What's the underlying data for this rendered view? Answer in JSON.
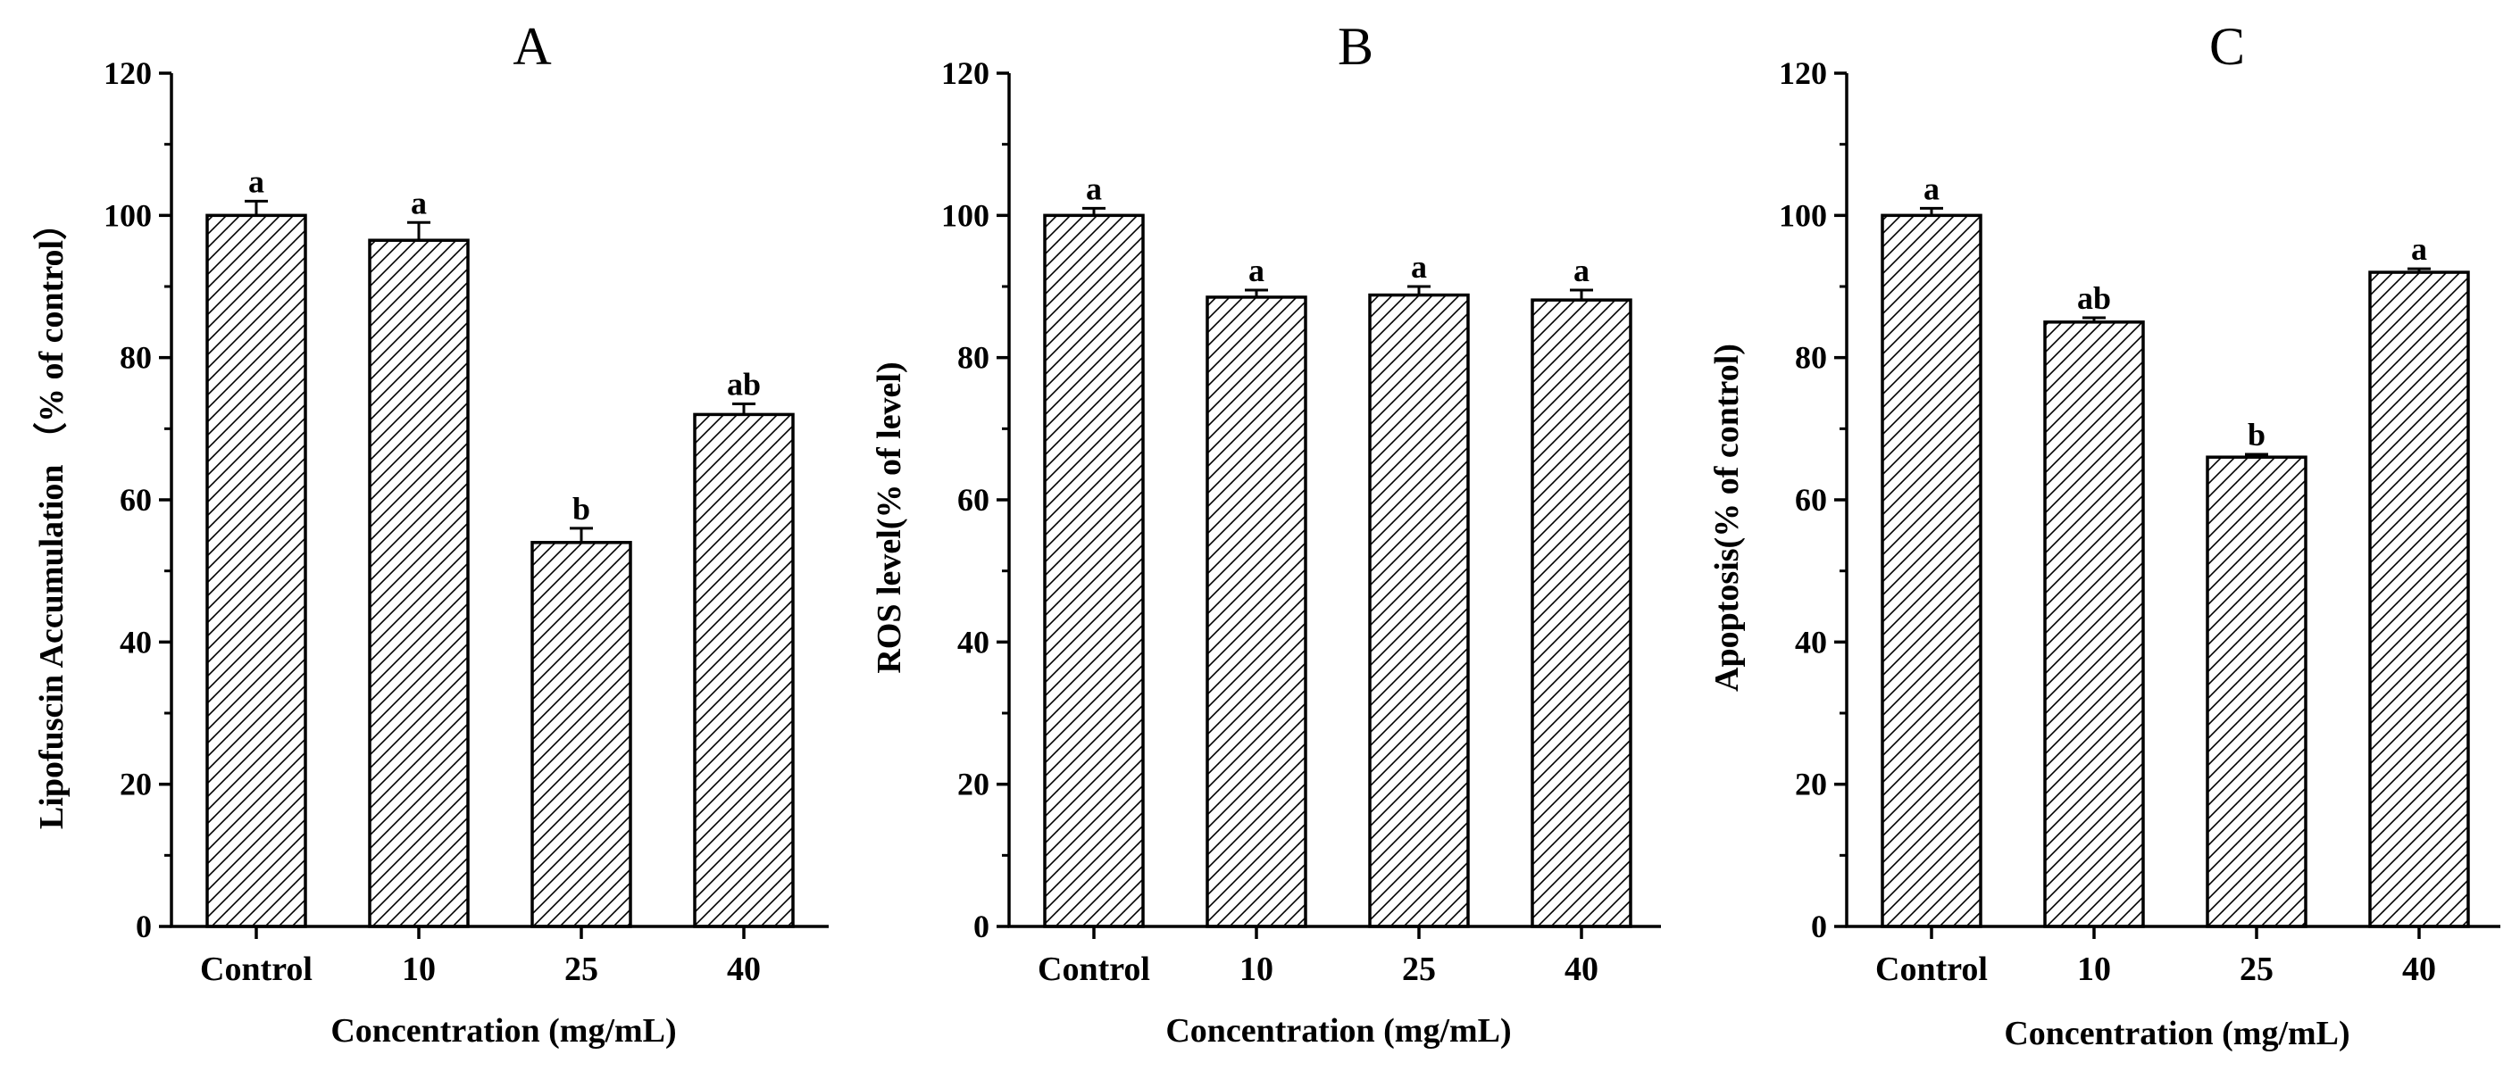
{
  "chart_data": [
    {
      "type": "bar",
      "panel_label": "A",
      "categories": [
        "Control",
        "10",
        "25",
        "40"
      ],
      "values": [
        100,
        96.5,
        54,
        72
      ],
      "errors": [
        2,
        2.5,
        2,
        1.5
      ],
      "significance": [
        "a",
        "a",
        "b",
        "ab"
      ],
      "xlabel": "Concentration (mg/mL)",
      "ylabel": "Lipofuscin Accumulation （% of control）",
      "ylim": [
        0,
        120
      ],
      "yticks": [
        0,
        20,
        40,
        60,
        80,
        100,
        120
      ],
      "fill": "diagonal hatch"
    },
    {
      "type": "bar",
      "panel_label": "B",
      "categories": [
        "Control",
        "10",
        "25",
        "40"
      ],
      "values": [
        100,
        88.5,
        88.8,
        88.1
      ],
      "errors": [
        1,
        1,
        1.2,
        1.4
      ],
      "significance": [
        "a",
        "a",
        "a",
        "a"
      ],
      "xlabel": "Concentration (mg/mL)",
      "ylabel": "ROS level(% of level)",
      "ylim": [
        0,
        120
      ],
      "yticks": [
        0,
        20,
        40,
        60,
        80,
        100,
        120
      ],
      "fill": "diagonal hatch"
    },
    {
      "type": "bar",
      "panel_label": "C",
      "categories": [
        "Control",
        "10",
        "25",
        "40"
      ],
      "values": [
        100,
        85,
        66,
        92
      ],
      "errors": [
        1,
        0.6,
        0.4,
        0.5
      ],
      "significance": [
        "a",
        "ab",
        "b",
        "a"
      ],
      "xlabel": "Concentration (mg/mL)",
      "ylabel": "Apoptosis(% of control)",
      "ylim": [
        0,
        120
      ],
      "yticks": [
        0,
        20,
        40,
        60,
        80,
        100,
        120
      ],
      "fill": "diagonal hatch"
    }
  ],
  "colors": {
    "bar_edge": "#000000",
    "hatch": "#000000",
    "background": "#ffffff"
  }
}
